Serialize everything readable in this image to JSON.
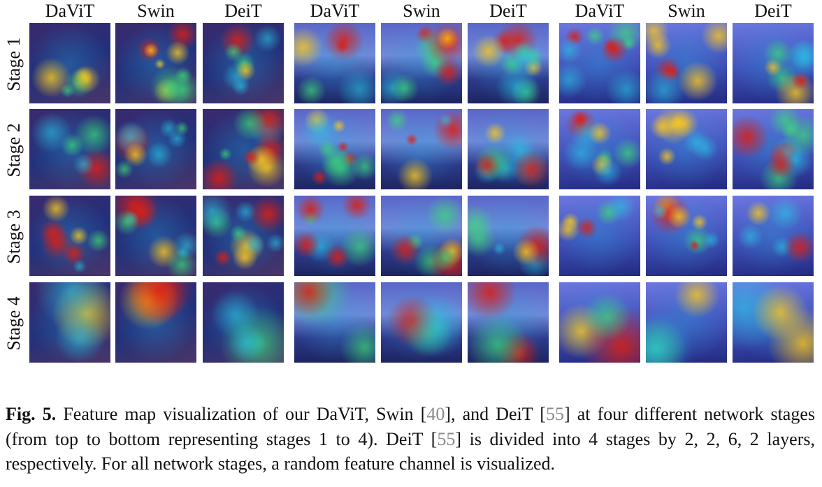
{
  "figure": {
    "columns": [
      "DaViT",
      "Swin",
      "DeiT",
      "DaViT",
      "Swin",
      "DeiT",
      "DaViT",
      "Swin",
      "DeiT"
    ],
    "rows": [
      "Stage 1",
      "Stage 2",
      "Stage 3",
      "Stage 4"
    ]
  },
  "caption": {
    "label": "Fig. 5.",
    "parts": [
      "Feature map visualization of our DaViT, Swin [",
      "40",
      "], and DeiT [",
      "55",
      "] at four different network stages (from top to bottom representing stages 1 to 4). DeiT [",
      "55",
      "] is divided into 4 stages by 2, 2, 6, 2 layers, respectively. For all network stages, a random feature channel is visualized."
    ]
  }
}
